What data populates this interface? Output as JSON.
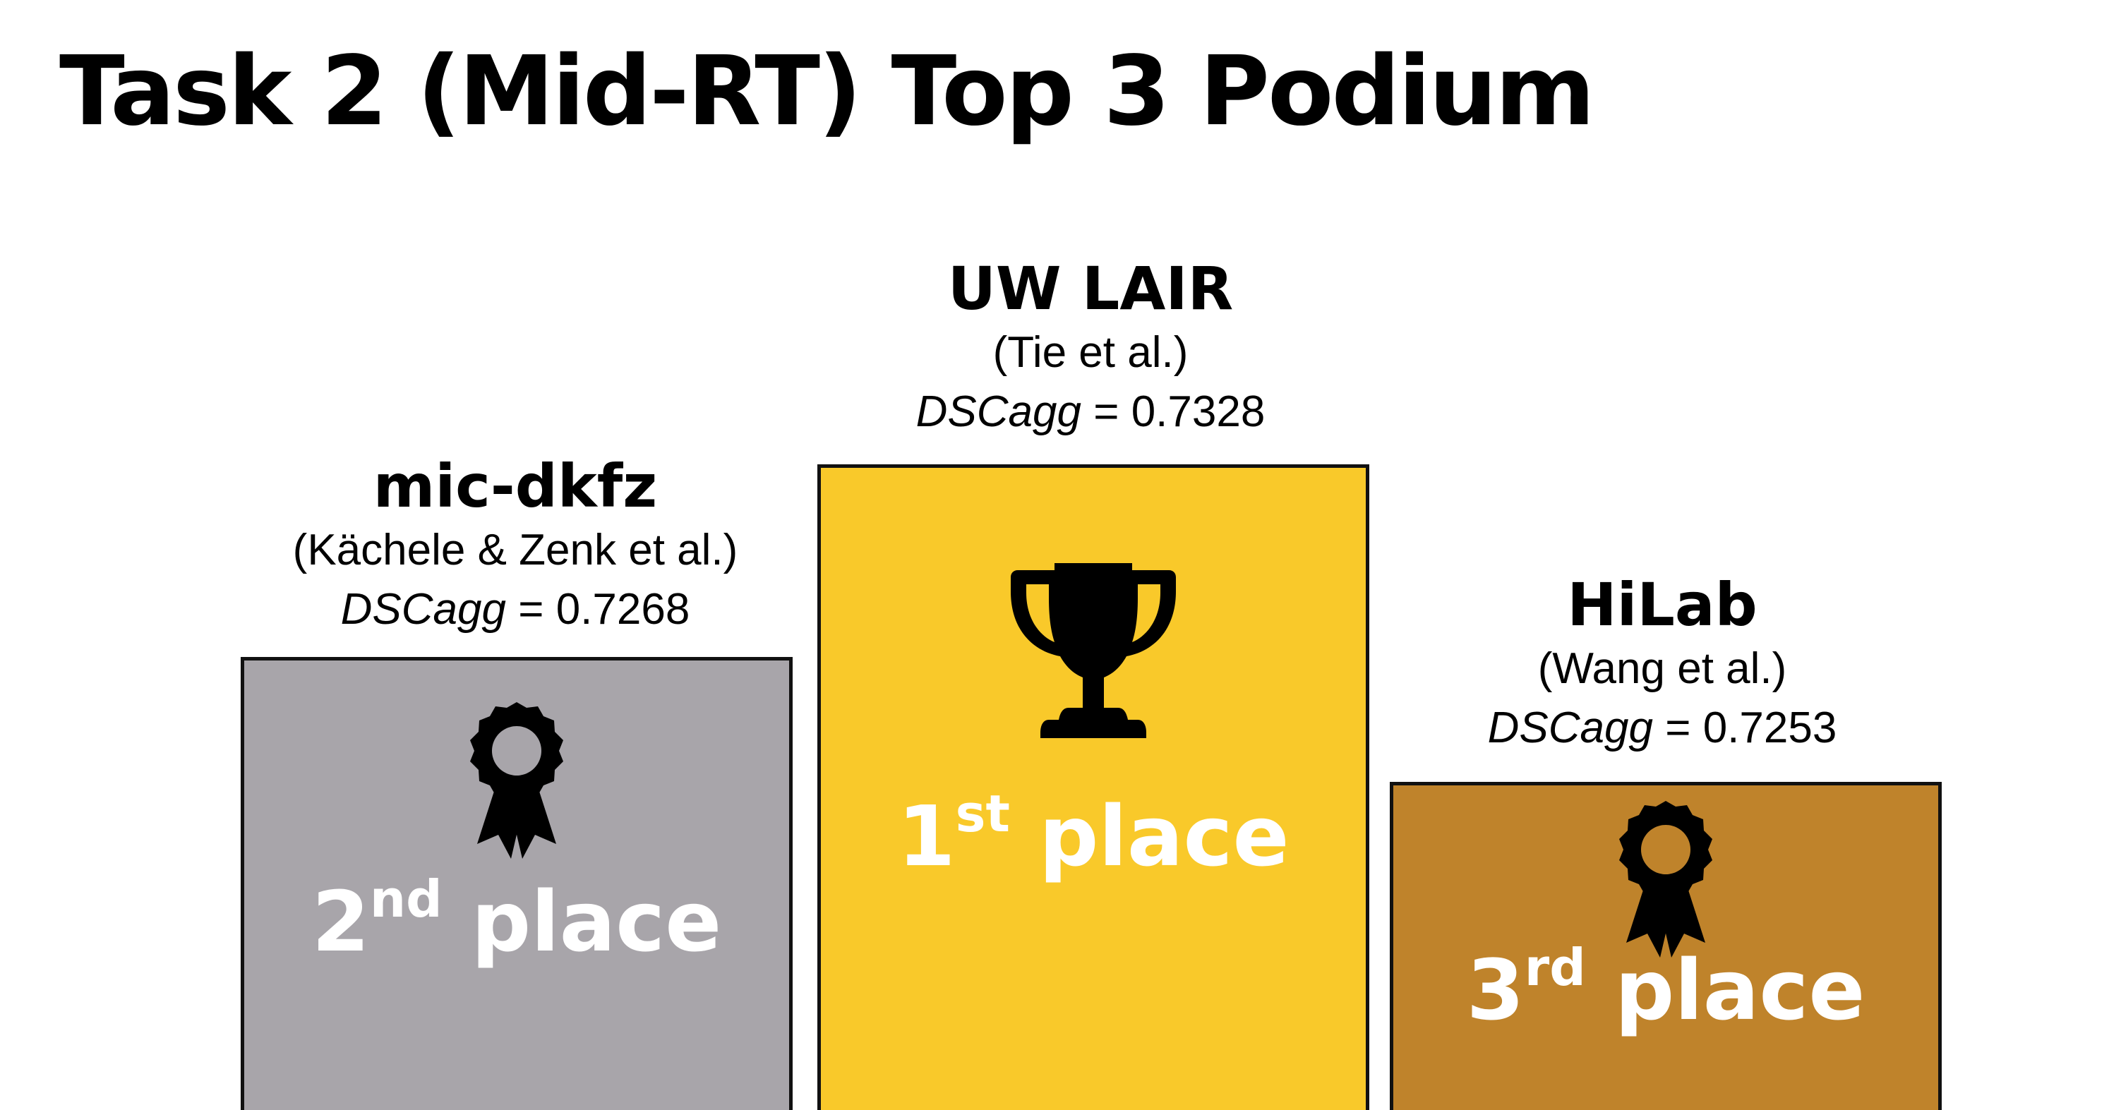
{
  "title": "Task 2 (Mid-RT) Top 3 Podium",
  "score_metric": "DSCagg",
  "score_separator": " = ",
  "podium": {
    "first": {
      "team": "UW LAIR",
      "authors": "(Tie et al.)",
      "score": "0.7328",
      "place_number": "1",
      "place_suffix": "st",
      "place_word": " place",
      "icon": "trophy-icon",
      "color": "#F9C92A"
    },
    "second": {
      "team": "mic-dkfz",
      "authors": "(Kächele & Zenk et al.)",
      "score": "0.7268",
      "place_number": "2",
      "place_suffix": "nd",
      "place_word": " place",
      "icon": "award-ribbon-icon",
      "color": "#A8A5AA"
    },
    "third": {
      "team": "HiLab",
      "authors": "(Wang et al.)",
      "score": "0.7253",
      "place_number": "3",
      "place_suffix": "rd",
      "place_word": " place",
      "icon": "award-ribbon-icon",
      "color": "#BF832B"
    }
  }
}
